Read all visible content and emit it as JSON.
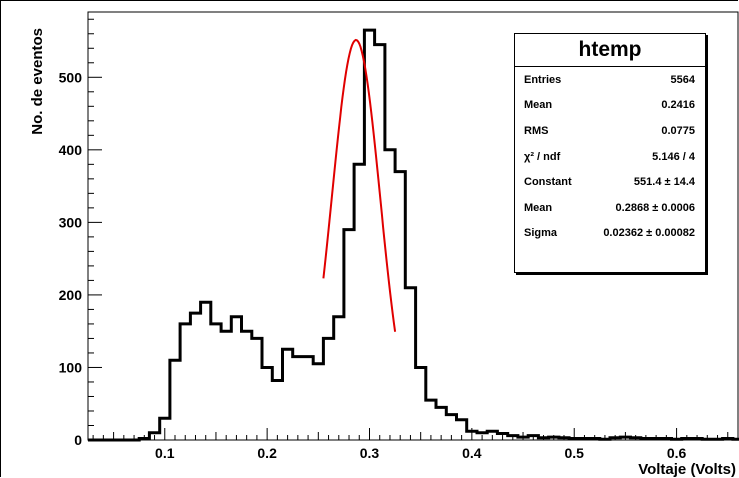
{
  "chart_data": {
    "type": "histogram",
    "xlabel": "Voltaje (Volts)",
    "ylabel": "No. de eventos",
    "xlim": [
      0.025,
      0.66
    ],
    "ylim": [
      0,
      590
    ],
    "x_ticks": [
      "0.1",
      "0.2",
      "0.3",
      "0.4",
      "0.5",
      "0.6"
    ],
    "x_tick_values": [
      0.1,
      0.2,
      0.3,
      0.4,
      0.5,
      0.6
    ],
    "y_ticks": [
      "0",
      "100",
      "200",
      "300",
      "400",
      "500"
    ],
    "y_tick_values": [
      0,
      100,
      200,
      300,
      400,
      500
    ],
    "bin_width": 0.01,
    "bin_start": 0.025,
    "counts": [
      0,
      0,
      0,
      0,
      0,
      2,
      10,
      30,
      110,
      160,
      175,
      190,
      160,
      150,
      170,
      150,
      140,
      100,
      82,
      125,
      115,
      115,
      105,
      140,
      170,
      290,
      380,
      565,
      545,
      400,
      370,
      210,
      100,
      55,
      45,
      35,
      28,
      12,
      10,
      12,
      9,
      6,
      4,
      6,
      3,
      4,
      3,
      2,
      2,
      2,
      1,
      3,
      4,
      3,
      2,
      2,
      2,
      1,
      2,
      2,
      1,
      1,
      2,
      1
    ],
    "fit": {
      "label": "gaussian fit",
      "color": "#e00000",
      "constant": 551.4,
      "mean": 0.2868,
      "sigma": 0.02362,
      "range": [
        0.255,
        0.325
      ]
    },
    "line_color": "#000000"
  },
  "stats": {
    "title": "htemp",
    "rows": [
      {
        "label": "Entries",
        "value": "5564"
      },
      {
        "label": "Mean",
        "value": "0.2416"
      },
      {
        "label": "RMS",
        "value": "0.0775"
      },
      {
        "label": "χ² / ndf",
        "value": "5.146 / 4"
      },
      {
        "label": "Constant",
        "value": "551.4 ± 14.4"
      },
      {
        "label": "Mean",
        "value": "0.2868 ± 0.0006"
      },
      {
        "label": "Sigma",
        "value": "0.02362 ± 0.00082"
      }
    ]
  }
}
